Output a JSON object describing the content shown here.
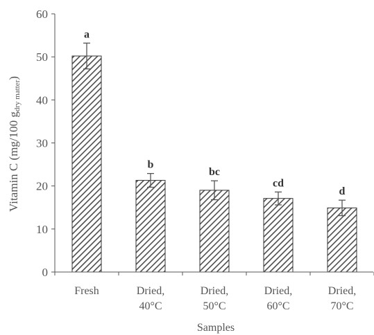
{
  "chart_data": {
    "type": "bar",
    "categories": [
      [
        "Fresh"
      ],
      [
        "Dried,",
        "40°C"
      ],
      [
        "Dried,",
        "50°C"
      ],
      [
        "Dried,",
        "60°C"
      ],
      [
        "Dried,",
        "70°C"
      ]
    ],
    "values": [
      50.2,
      21.3,
      19.0,
      17.1,
      14.9
    ],
    "errors": [
      3.0,
      1.6,
      2.2,
      1.5,
      1.8
    ],
    "significance_labels": [
      "a",
      "b",
      "bc",
      "cd",
      "d"
    ],
    "ylabel": {
      "main": "Vitamin C (mg/100 g",
      "subscript": "dry matter",
      "close": ")"
    },
    "xlabel": "Samples",
    "ylim": [
      0,
      60
    ],
    "yticks": [
      0,
      10,
      20,
      30,
      40,
      50,
      60
    ],
    "grid": false,
    "legend": "none",
    "colors": {
      "hatch": "#4d4d4d",
      "bar_border": "#333333",
      "axis": "#555555",
      "error_bar": "#555555"
    },
    "bar_pattern": "diagonal-hatch"
  }
}
